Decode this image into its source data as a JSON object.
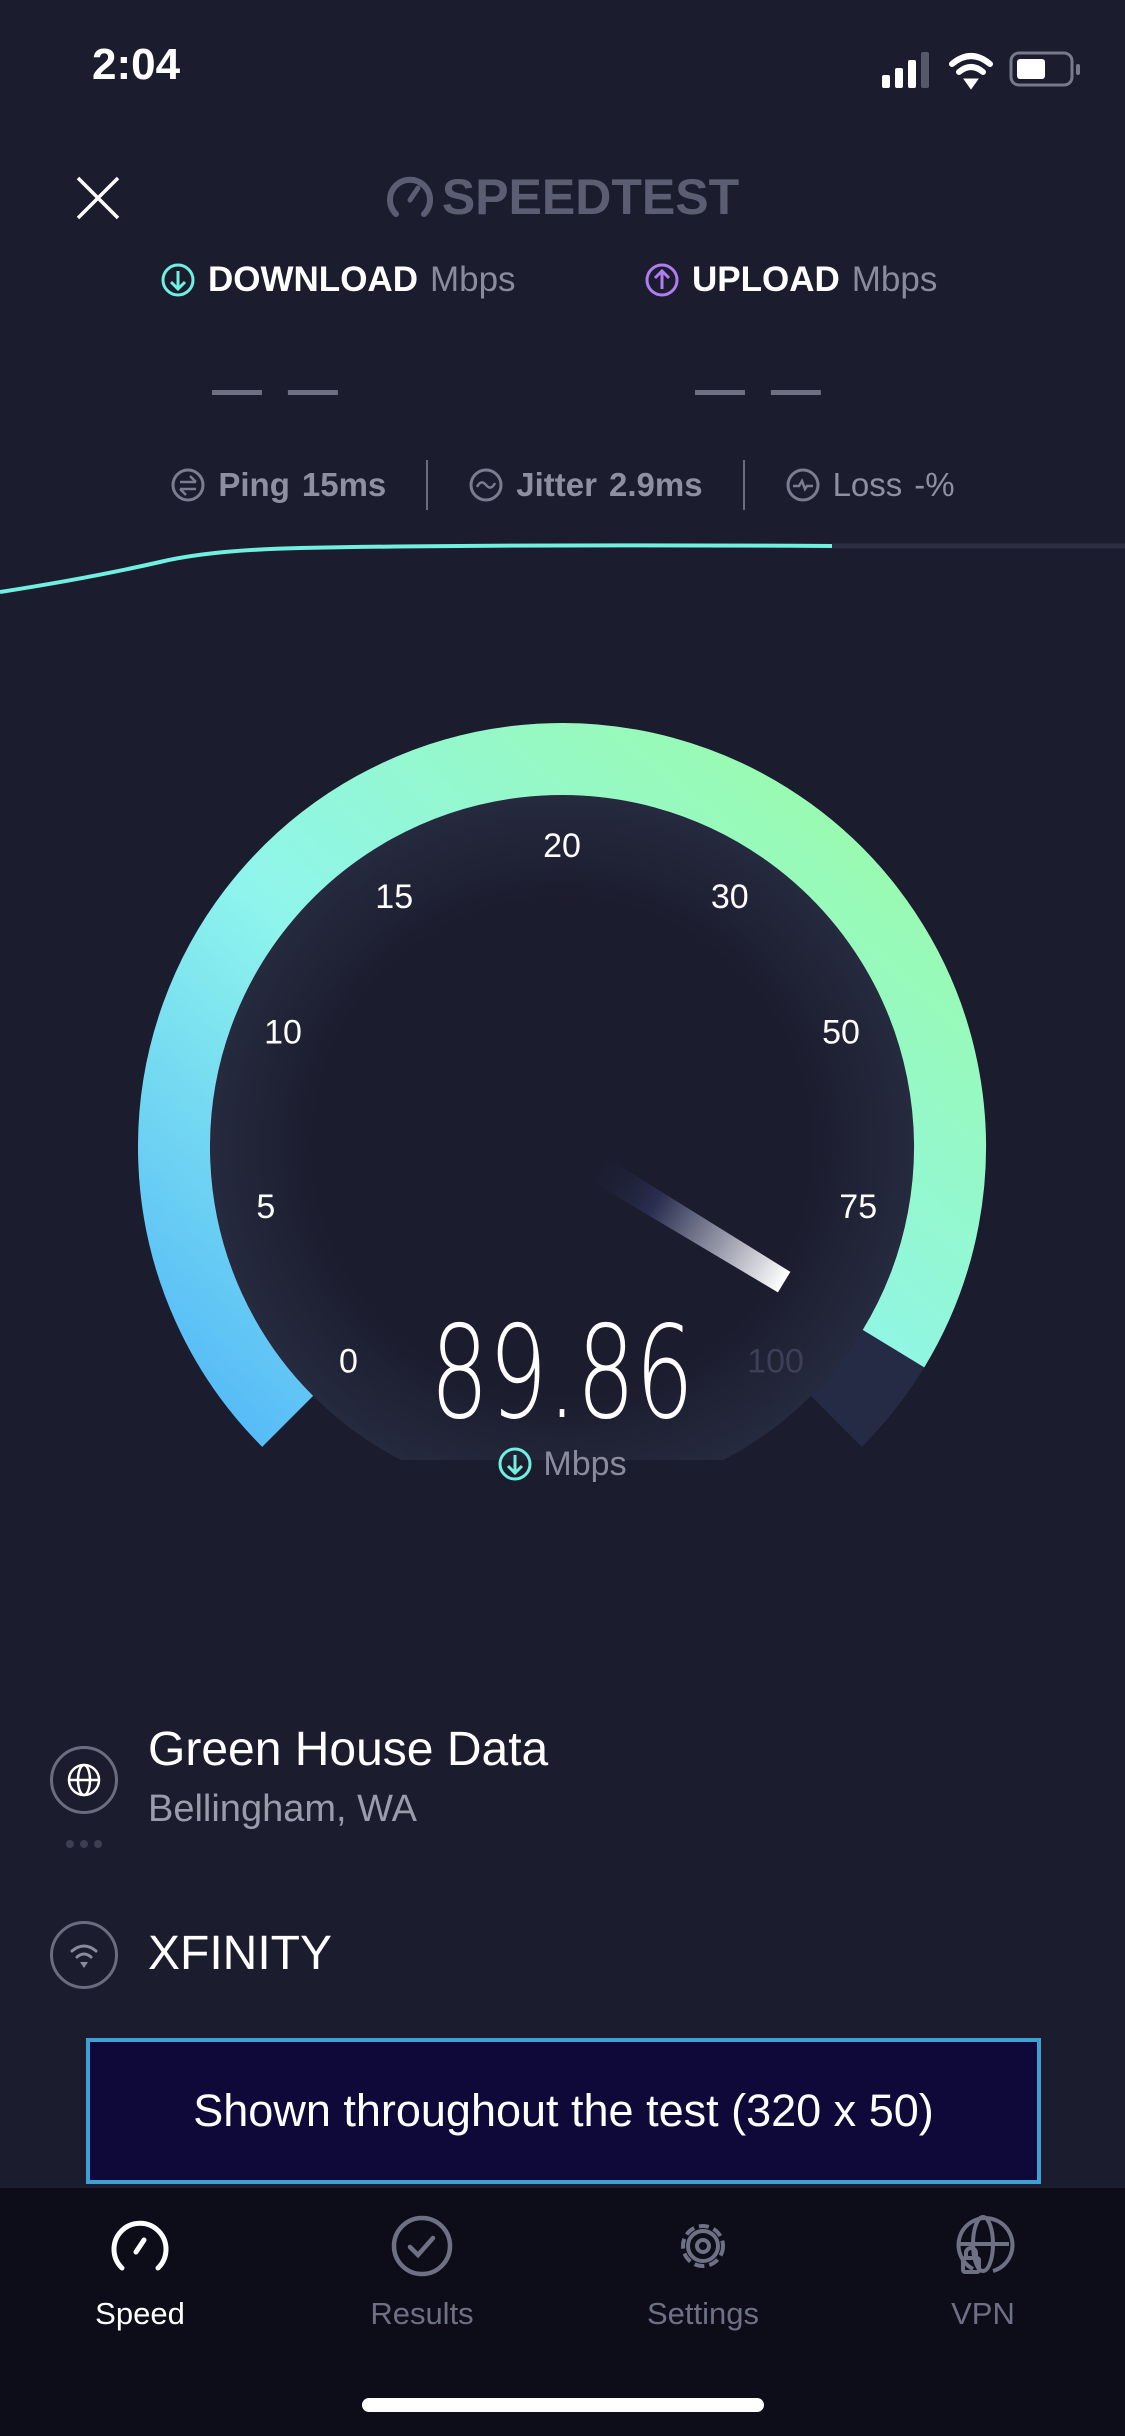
{
  "status_bar": {
    "time": "2:04",
    "icons": [
      "signal-icon",
      "wifi-icon",
      "battery-icon"
    ]
  },
  "header": {
    "close_icon": "close-icon",
    "logo": "SPEEDTEST"
  },
  "metrics": {
    "download": {
      "label": "DOWNLOAD",
      "unit": "Mbps",
      "value": "— —",
      "color": "#6ff0e0"
    },
    "upload": {
      "label": "UPLOAD",
      "unit": "Mbps",
      "value": "— —",
      "color": "#b07cf0"
    }
  },
  "stats": {
    "ping": {
      "label": "Ping",
      "value": "15",
      "unit": "ms"
    },
    "jitter": {
      "label": "Jitter",
      "value": "2.9",
      "unit": "ms"
    },
    "loss": {
      "label": "Loss",
      "value": "-",
      "unit": "%"
    }
  },
  "gauge": {
    "ticks": [
      "0",
      "5",
      "10",
      "15",
      "20",
      "30",
      "50",
      "75",
      "100"
    ],
    "value": "89.86",
    "unit": "Mbps",
    "colors": {
      "start": "#52b6f8",
      "mid": "#8ff5ec",
      "end": "#9cfca0",
      "remainder": "#262b45"
    }
  },
  "server": {
    "name": "Green House Data",
    "location": "Bellingham, WA"
  },
  "provider": {
    "name": "XFINITY"
  },
  "ad": {
    "text": "Shown throughout the test (320 x 50)"
  },
  "tabs": [
    {
      "label": "Speed",
      "icon": "speedometer-icon",
      "active": true
    },
    {
      "label": "Results",
      "icon": "check-circle-icon"
    },
    {
      "label": "Settings",
      "icon": "gear-icon"
    },
    {
      "label": "VPN",
      "icon": "vpn-globe-lock-icon"
    }
  ]
}
